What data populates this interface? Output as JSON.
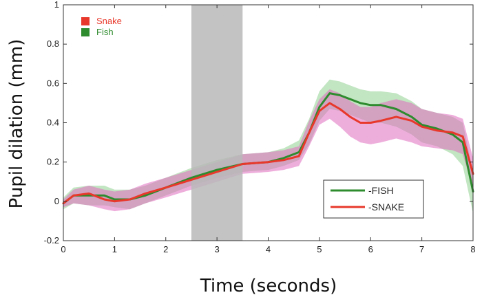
{
  "chart_data": {
    "type": "line",
    "xlabel": "Time (seconds)",
    "ylabel": "Pupil dilation (mm)",
    "xlim": [
      0,
      8
    ],
    "ylim": [
      -0.2,
      1
    ],
    "xticks": [
      "0",
      "1",
      "2",
      "3",
      "4",
      "5",
      "6",
      "7",
      "8"
    ],
    "yticks": [
      "-0.2",
      "0",
      "0.2",
      "0.4",
      "0.6",
      "0.8",
      "1"
    ],
    "shaded_interval": [
      2.5,
      3.5
    ],
    "shaded_color": "#b9b9b9",
    "legend_top_left": [
      {
        "label": "Snake",
        "color": "#e8382b"
      },
      {
        "label": "Fish",
        "color": "#2e8b2e"
      }
    ],
    "legend_bottom_right": [
      {
        "label": "-FISH",
        "color": "#2e8b2e"
      },
      {
        "label": "-SNAKE",
        "color": "#e8382b"
      }
    ],
    "series": [
      {
        "name": "Fish",
        "color": "#2e8b2e",
        "band_color": "#8fd08f",
        "x": [
          0,
          0.2,
          0.5,
          0.8,
          1.0,
          1.3,
          1.6,
          2.0,
          2.5,
          3.0,
          3.5,
          4.0,
          4.3,
          4.6,
          4.8,
          5.0,
          5.2,
          5.4,
          5.6,
          5.8,
          6.0,
          6.2,
          6.5,
          6.8,
          7.0,
          7.3,
          7.6,
          7.8,
          8.0
        ],
        "y": [
          -0.01,
          0.03,
          0.03,
          0.03,
          0.01,
          0.01,
          0.03,
          0.07,
          0.12,
          0.16,
          0.19,
          0.2,
          0.22,
          0.25,
          0.35,
          0.48,
          0.55,
          0.54,
          0.52,
          0.5,
          0.49,
          0.49,
          0.47,
          0.43,
          0.39,
          0.37,
          0.34,
          0.3,
          0.05
        ],
        "lower": [
          -0.04,
          -0.01,
          -0.02,
          -0.02,
          -0.03,
          -0.04,
          -0.01,
          0.03,
          0.08,
          0.12,
          0.15,
          0.16,
          0.18,
          0.21,
          0.29,
          0.41,
          0.47,
          0.46,
          0.44,
          0.42,
          0.4,
          0.4,
          0.38,
          0.34,
          0.3,
          0.28,
          0.24,
          0.18,
          -0.06
        ],
        "upper": [
          0.02,
          0.07,
          0.08,
          0.08,
          0.06,
          0.06,
          0.08,
          0.12,
          0.17,
          0.21,
          0.24,
          0.25,
          0.27,
          0.31,
          0.42,
          0.56,
          0.62,
          0.61,
          0.59,
          0.57,
          0.56,
          0.56,
          0.55,
          0.51,
          0.47,
          0.45,
          0.43,
          0.4,
          0.15
        ]
      },
      {
        "name": "Snake",
        "color": "#e8382b",
        "band_color": "#e06bc0",
        "x": [
          0,
          0.2,
          0.5,
          0.8,
          1.0,
          1.3,
          1.6,
          2.0,
          2.5,
          3.0,
          3.5,
          4.0,
          4.3,
          4.6,
          4.8,
          5.0,
          5.2,
          5.4,
          5.6,
          5.8,
          6.0,
          6.2,
          6.5,
          6.8,
          7.0,
          7.3,
          7.6,
          7.8,
          8.0
        ],
        "y": [
          -0.01,
          0.03,
          0.04,
          0.01,
          0.0,
          0.01,
          0.04,
          0.07,
          0.11,
          0.15,
          0.19,
          0.2,
          0.21,
          0.23,
          0.35,
          0.46,
          0.5,
          0.47,
          0.43,
          0.4,
          0.4,
          0.41,
          0.43,
          0.41,
          0.38,
          0.36,
          0.35,
          0.33,
          0.14
        ],
        "lower": [
          -0.03,
          -0.01,
          -0.02,
          -0.04,
          -0.05,
          -0.04,
          -0.01,
          0.02,
          0.06,
          0.1,
          0.14,
          0.15,
          0.16,
          0.18,
          0.28,
          0.39,
          0.42,
          0.38,
          0.33,
          0.3,
          0.29,
          0.3,
          0.32,
          0.3,
          0.28,
          0.27,
          0.26,
          0.24,
          0.06
        ],
        "upper": [
          0.01,
          0.06,
          0.08,
          0.06,
          0.05,
          0.06,
          0.09,
          0.12,
          0.16,
          0.2,
          0.24,
          0.25,
          0.26,
          0.28,
          0.41,
          0.52,
          0.57,
          0.55,
          0.51,
          0.48,
          0.48,
          0.5,
          0.52,
          0.5,
          0.47,
          0.45,
          0.44,
          0.42,
          0.22
        ]
      }
    ]
  }
}
